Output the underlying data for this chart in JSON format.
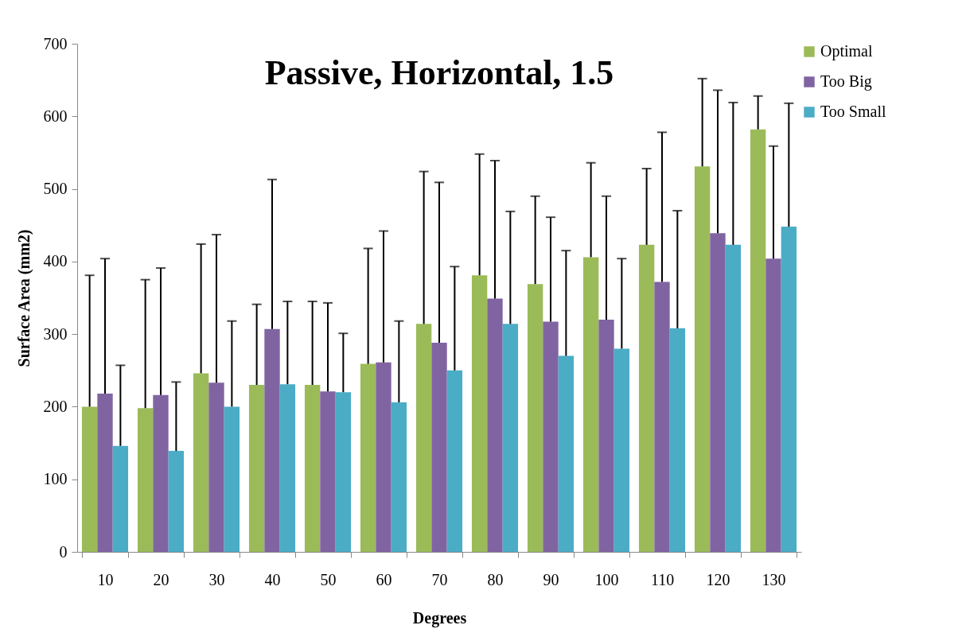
{
  "chart_data": {
    "type": "bar",
    "title": "Passive, Horizontal, 1.5",
    "xlabel": "Degrees",
    "ylabel": "Surface Area (mm2)",
    "categories": [
      "10",
      "20",
      "30",
      "40",
      "50",
      "60",
      "70",
      "80",
      "90",
      "100",
      "110",
      "120",
      "130"
    ],
    "series": [
      {
        "name": "Optimal",
        "color": "#9bbb59",
        "values": [
          200,
          198,
          246,
          230,
          230,
          259,
          314,
          381,
          369,
          406,
          423,
          531,
          582
        ],
        "errors": [
          [
            200,
            381
          ],
          [
            198,
            375
          ],
          [
            246,
            424
          ],
          [
            230,
            341
          ],
          [
            230,
            345
          ],
          [
            259,
            418
          ],
          [
            314,
            524
          ],
          [
            381,
            548
          ],
          [
            369,
            490
          ],
          [
            406,
            536
          ],
          [
            423,
            528
          ],
          [
            531,
            652
          ],
          [
            582,
            628
          ]
        ]
      },
      {
        "name": "Too Big",
        "color": "#8064a2",
        "values": [
          218,
          216,
          233,
          307,
          221,
          261,
          288,
          349,
          317,
          320,
          372,
          439,
          404
        ],
        "errors": [
          [
            218,
            404
          ],
          [
            216,
            391
          ],
          [
            233,
            437
          ],
          [
            307,
            513
          ],
          [
            221,
            343
          ],
          [
            261,
            442
          ],
          [
            288,
            509
          ],
          [
            349,
            539
          ],
          [
            317,
            461
          ],
          [
            320,
            490
          ],
          [
            372,
            578
          ],
          [
            439,
            636
          ],
          [
            404,
            559
          ]
        ]
      },
      {
        "name": "Too Small",
        "color": "#4bacc6",
        "values": [
          146,
          139,
          200,
          231,
          220,
          206,
          250,
          314,
          270,
          280,
          308,
          423,
          448
        ],
        "errors": [
          [
            146,
            257
          ],
          [
            139,
            234
          ],
          [
            200,
            318
          ],
          [
            231,
            345
          ],
          [
            220,
            301
          ],
          [
            206,
            318
          ],
          [
            250,
            393
          ],
          [
            314,
            469
          ],
          [
            270,
            415
          ],
          [
            280,
            404
          ],
          [
            308,
            470
          ],
          [
            423,
            619
          ],
          [
            448,
            618
          ]
        ]
      }
    ],
    "ylim": [
      0,
      700
    ],
    "yticks": [
      0,
      100,
      200,
      300,
      400,
      500,
      600,
      700
    ],
    "grid": false,
    "legend": "right"
  }
}
